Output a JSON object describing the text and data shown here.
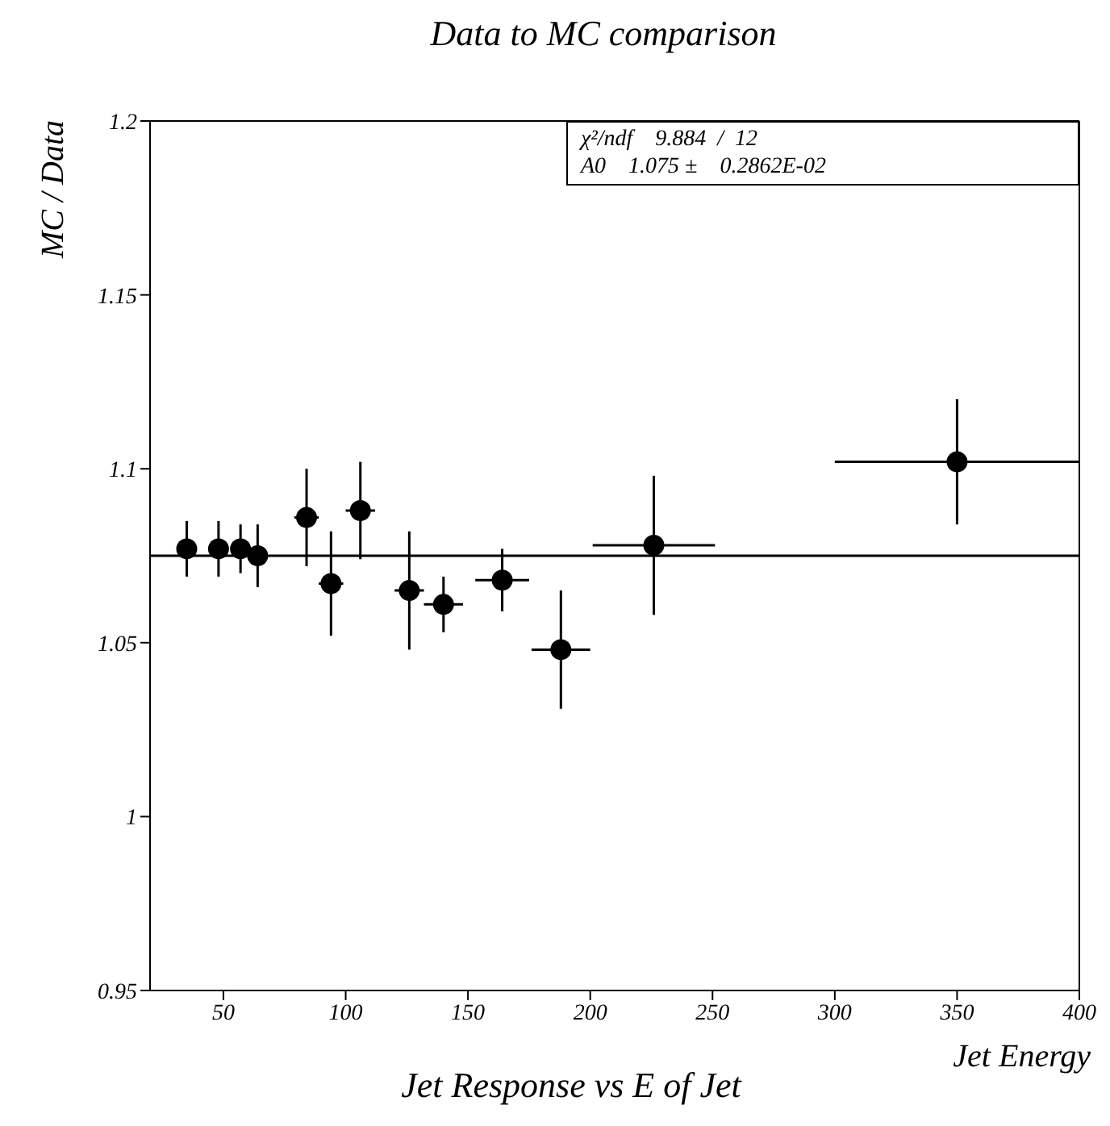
{
  "chart_data": {
    "type": "scatter",
    "title": "Data to MC comparison",
    "xlabel": "Jet Energy",
    "ylabel": "MC / Data",
    "annotations": [
      "χ²/ndf    9.884  /  12",
      "A0    1.075 ±    0.2862E-02",
      "Jet Response vs E of Jet"
    ],
    "xlim": [
      20,
      400
    ],
    "xticks": [
      50,
      100,
      150,
      200,
      250,
      300,
      350,
      400
    ],
    "ylim": [
      0.95,
      1.2
    ],
    "yticks": [
      0.95,
      1,
      1.05,
      1.1,
      1.15,
      1.2
    ],
    "series": [
      {
        "marker": "circle",
        "color": "#000000",
        "x": [
          35,
          48,
          57,
          64,
          84,
          94,
          106,
          126,
          140,
          164,
          188,
          226,
          350
        ],
        "values": [
          1.077,
          1.077,
          1.077,
          1.075,
          1.086,
          1.067,
          1.088,
          1.065,
          1.061,
          1.068,
          1.048,
          1.078,
          1.102
        ],
        "errors": [
          0.008,
          0.008,
          0.007,
          0.009,
          0.014,
          0.015,
          0.014,
          0.017,
          0.008,
          0.009,
          0.017,
          0.02,
          0.018
        ],
        "xerrors": [
          4,
          4,
          4,
          4,
          5,
          5,
          6,
          6,
          8,
          11,
          12,
          25,
          50
        ]
      },
      {
        "type": "line",
        "color": "#000000",
        "x": [
          20,
          400
        ],
        "values": [
          1.075,
          1.075
        ]
      }
    ]
  }
}
